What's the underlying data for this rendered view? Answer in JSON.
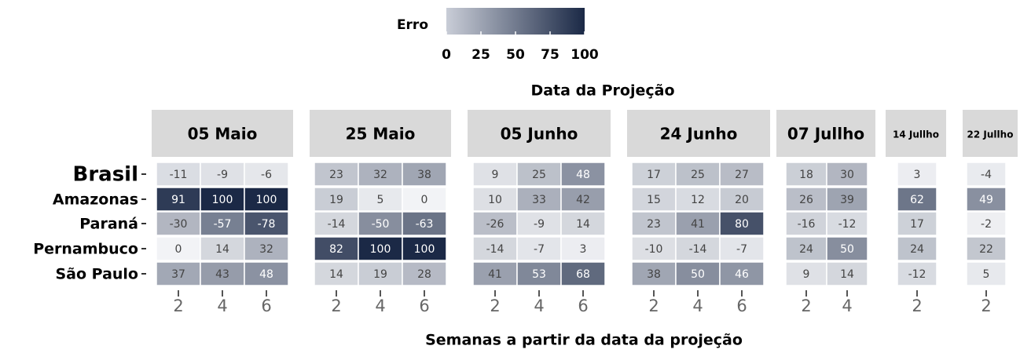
{
  "chart_data": {
    "type": "heatmap",
    "title": "Data da Projeção",
    "x_label": "Semanas a partir da data da projeção",
    "rows": [
      "Brasil",
      "Amazonas",
      "Paraná",
      "Pernambuco",
      "São Paulo"
    ],
    "legend": {
      "title": "Erro",
      "range": [
        0,
        100
      ],
      "ticks": [
        0,
        25,
        50,
        75,
        100
      ],
      "colors": [
        "#f2f3f6",
        "#1b2946"
      ]
    },
    "panels": [
      {
        "name": "05 Maio",
        "x": [
          2,
          4,
          6
        ],
        "values": [
          [
            -11,
            -9,
            -6
          ],
          [
            91,
            100,
            100
          ],
          [
            -30,
            -57,
            -78
          ],
          [
            0,
            14,
            32
          ],
          [
            37,
            43,
            48
          ]
        ]
      },
      {
        "name": "25 Maio",
        "x": [
          2,
          4,
          6
        ],
        "values": [
          [
            23,
            32,
            38
          ],
          [
            19,
            5,
            0
          ],
          [
            -14,
            -50,
            -63
          ],
          [
            82,
            100,
            100
          ],
          [
            14,
            19,
            28
          ]
        ]
      },
      {
        "name": "05 Junho",
        "x": [
          2,
          4,
          6
        ],
        "values": [
          [
            9,
            25,
            48
          ],
          [
            10,
            33,
            42
          ],
          [
            -26,
            -9,
            14
          ],
          [
            -14,
            -7,
            3
          ],
          [
            41,
            53,
            68
          ]
        ]
      },
      {
        "name": "24 Junho",
        "x": [
          2,
          4,
          6
        ],
        "values": [
          [
            17,
            25,
            27
          ],
          [
            15,
            12,
            20
          ],
          [
            23,
            41,
            80
          ],
          [
            -10,
            -14,
            -7
          ],
          [
            38,
            50,
            46
          ]
        ]
      },
      {
        "name": "07 Jullho",
        "x": [
          2,
          4
        ],
        "values": [
          [
            18,
            30
          ],
          [
            26,
            39
          ],
          [
            -16,
            -12
          ],
          [
            24,
            50
          ],
          [
            9,
            14
          ]
        ]
      },
      {
        "name": "14 Jullho",
        "x": [
          2
        ],
        "values": [
          [
            3
          ],
          [
            62
          ],
          [
            17
          ],
          [
            24
          ],
          [
            -12
          ]
        ]
      },
      {
        "name": "22 Jullho",
        "x": [
          2
        ],
        "values": [
          [
            -4
          ],
          [
            49
          ],
          [
            -2
          ],
          [
            22
          ],
          [
            5
          ]
        ]
      }
    ]
  }
}
